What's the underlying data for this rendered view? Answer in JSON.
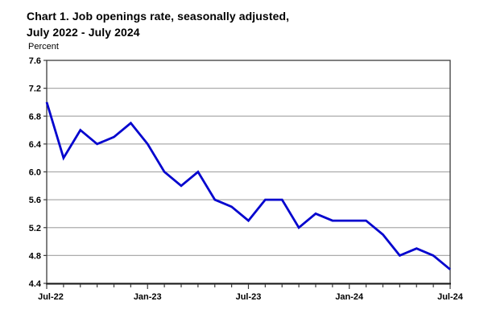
{
  "header": {
    "title_line1": "Chart 1. Job openings rate, seasonally adjusted,",
    "title_line2": "July 2022 - July 2024"
  },
  "chart_data": {
    "type": "line",
    "title": "Chart 1. Job openings rate, seasonally adjusted, July 2022 - July 2024",
    "ylabel": "Percent",
    "xlabel": "",
    "ylim": [
      4.4,
      7.6
    ],
    "yticks": [
      "7.6",
      "7.2",
      "6.8",
      "6.4",
      "6.0",
      "5.6",
      "5.2",
      "4.8",
      "4.4"
    ],
    "x": [
      "Jul-22",
      "Aug-22",
      "Sep-22",
      "Oct-22",
      "Nov-22",
      "Dec-22",
      "Jan-23",
      "Feb-23",
      "Mar-23",
      "Apr-23",
      "May-23",
      "Jun-23",
      "Jul-23",
      "Aug-23",
      "Sep-23",
      "Oct-23",
      "Nov-23",
      "Dec-23",
      "Jan-24",
      "Feb-24",
      "Mar-24",
      "Apr-24",
      "May-24",
      "Jun-24",
      "Jul-24"
    ],
    "values": [
      7.0,
      6.2,
      6.6,
      6.4,
      6.5,
      6.7,
      6.4,
      6.0,
      5.8,
      6.0,
      5.6,
      5.5,
      5.3,
      5.6,
      5.6,
      5.2,
      5.4,
      5.3,
      5.3,
      5.3,
      5.1,
      4.8,
      4.9,
      4.8,
      4.6
    ],
    "xtick_labels": [
      "Jul-22",
      "Jan-23",
      "Jul-23",
      "Jan-24",
      "Jul-24"
    ],
    "xtick_every": 6,
    "grid": true,
    "legend_position": "none",
    "line_color": "#0404CE",
    "grid_color": "#ababab",
    "axis_color": "#3c3c3c",
    "bottom_axis_color": "#1a1a1a",
    "text_color": "#000000"
  }
}
